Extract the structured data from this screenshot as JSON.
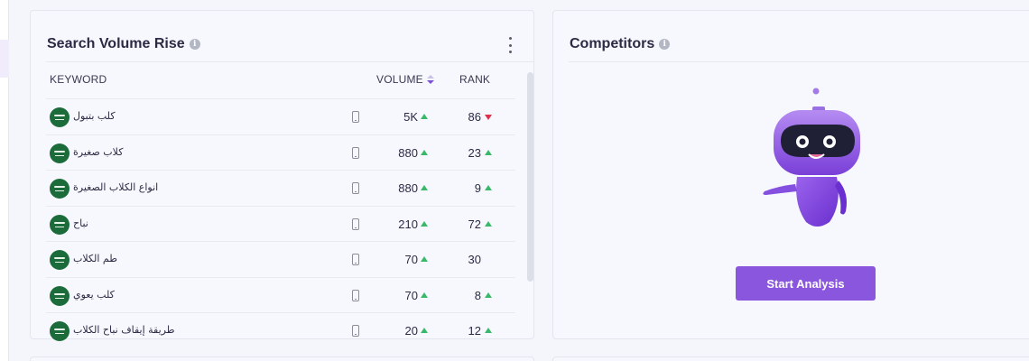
{
  "keyword_card": {
    "title": "Search Volume Rise",
    "info_icon": "i",
    "columns": {
      "keyword": "KEYWORD",
      "volume": "VOLUME",
      "rank": "RANK"
    },
    "rows": [
      {
        "keyword": "كلب بتبول",
        "volume": "5K",
        "volume_trend": "up",
        "rank": "86",
        "rank_trend": "down"
      },
      {
        "keyword": "كلاب صغيرة",
        "volume": "880",
        "volume_trend": "up",
        "rank": "23",
        "rank_trend": "up"
      },
      {
        "keyword": "انواع الكلاب الصغيرة",
        "volume": "880",
        "volume_trend": "up",
        "rank": "9",
        "rank_trend": "up"
      },
      {
        "keyword": "نباح",
        "volume": "210",
        "volume_trend": "up",
        "rank": "72",
        "rank_trend": "up"
      },
      {
        "keyword": "طم الكلاب",
        "volume": "70",
        "volume_trend": "up",
        "rank": "30",
        "rank_trend": "none"
      },
      {
        "keyword": "كلب يعوي",
        "volume": "70",
        "volume_trend": "up",
        "rank": "8",
        "rank_trend": "up"
      },
      {
        "keyword": "طريقة إيقاف نباح الكلاب",
        "volume": "20",
        "volume_trend": "up",
        "rank": "12",
        "rank_trend": "up"
      }
    ]
  },
  "competitors_card": {
    "title": "Competitors",
    "info_icon": "i",
    "button_label": "Start Analysis"
  },
  "colors": {
    "accent": "#8a56dd",
    "trend_up": "#3ab86a",
    "trend_down": "#e0304c",
    "flag": "#1c6b3a"
  },
  "icons": {
    "row_flag": "saudi-arabia-flag-icon",
    "row_device": "mobile-device-icon",
    "menu": "kebab-menu-icon",
    "illustration": "robot-illustration"
  }
}
